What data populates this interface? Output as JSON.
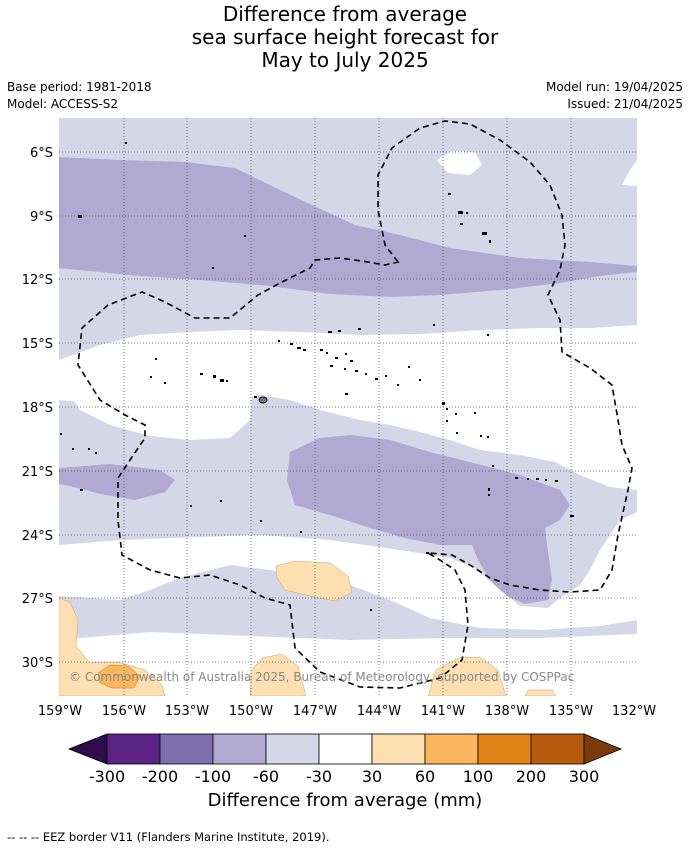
{
  "title_lines": [
    "Difference from average",
    "sea surface height forecast for",
    "May to July 2025"
  ],
  "base_period": "Base period: 1981-2018",
  "model": "Model: ACCESS-S2",
  "model_run": "Model run: 19/04/2025",
  "issued": "Issued: 21/04/2025",
  "copyright": "© Commonwealth of Australia 2025, Bureau of Meteorology, supported by COSPPac",
  "lat_labels": [
    "6°S",
    "9°S",
    "12°S",
    "15°S",
    "18°S",
    "21°S",
    "24°S",
    "27°S",
    "30°S"
  ],
  "lon_labels": [
    "159°W",
    "156°W",
    "153°W",
    "150°W",
    "147°W",
    "144°W",
    "141°W",
    "138°W",
    "135°W",
    "132°W"
  ],
  "map_extent": {
    "lon_min_W": 159,
    "lon_max_W": 132,
    "lat_max_S": 4.5,
    "lat_min_S": 31.6
  },
  "colorbar": {
    "ticks": [
      "-300",
      "-200",
      "-100",
      "-60",
      "-30",
      "30",
      "60",
      "100",
      "200",
      "300"
    ],
    "colors": [
      "#5b2485",
      "#7e6fae",
      "#b0aad2",
      "#d6d6e9",
      "#ffffff",
      "#fedfb1",
      "#fcb65e",
      "#e38417",
      "#b65b0c"
    ],
    "under_color": "#2e0c4e",
    "over_color": "#7b3a09",
    "label": "Difference from average (mm)"
  },
  "legend_footnote": "--  --  -- EEZ border V11 (Flanders Marine Institute, 2019)."
}
